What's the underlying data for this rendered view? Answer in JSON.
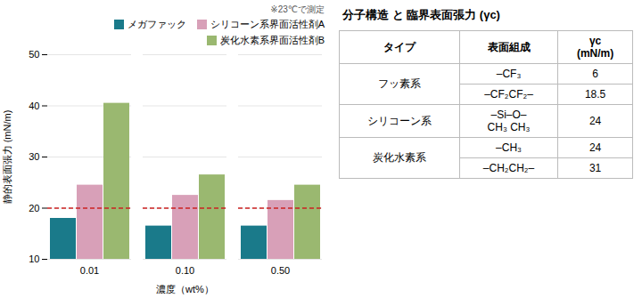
{
  "chart_data": [
    {
      "type": "bar",
      "categories": [
        "0.01",
        "0.10",
        "0.50"
      ],
      "series": [
        {
          "name": "メガファック",
          "color": "#1a7a8a",
          "values": [
            18,
            16.5,
            16.5
          ]
        },
        {
          "name": "シリコーン系界面活性剤A",
          "color": "#d8a0b8",
          "values": [
            24.5,
            22.5,
            21.5
          ]
        },
        {
          "name": "炭化水素系界面活性剤B",
          "color": "#9ab870",
          "values": [
            40.5,
            26.5,
            24.5
          ]
        }
      ],
      "xlabel": "濃度（wt%）",
      "ylabel": "静的表面張力 (mN/m)",
      "ylim": [
        10,
        50
      ],
      "yticks": [
        10,
        20,
        30,
        40,
        50
      ],
      "grid": true,
      "legend": "upper right",
      "annotations": [
        "※23℃で測定"
      ],
      "hline": {
        "value": 20,
        "color": "#cc2222",
        "line_style": "dashed"
      }
    },
    {
      "type": "table",
      "title": "分子構造 と 臨界表面張力 (γc)",
      "columns": [
        "タイプ",
        "表面組成",
        "γc\n(mN/m)"
      ],
      "rows": [
        [
          "フッ素系",
          "–CF₃",
          6
        ],
        [
          null,
          "–CF₂CF₂–",
          18.5
        ],
        [
          "シリコーン系",
          "–Si–O–\nCH₃  CH₃",
          24
        ],
        [
          "炭化水素系",
          "–CH₃",
          24
        ],
        [
          null,
          "–CH₂CH₂–",
          31
        ]
      ]
    }
  ]
}
